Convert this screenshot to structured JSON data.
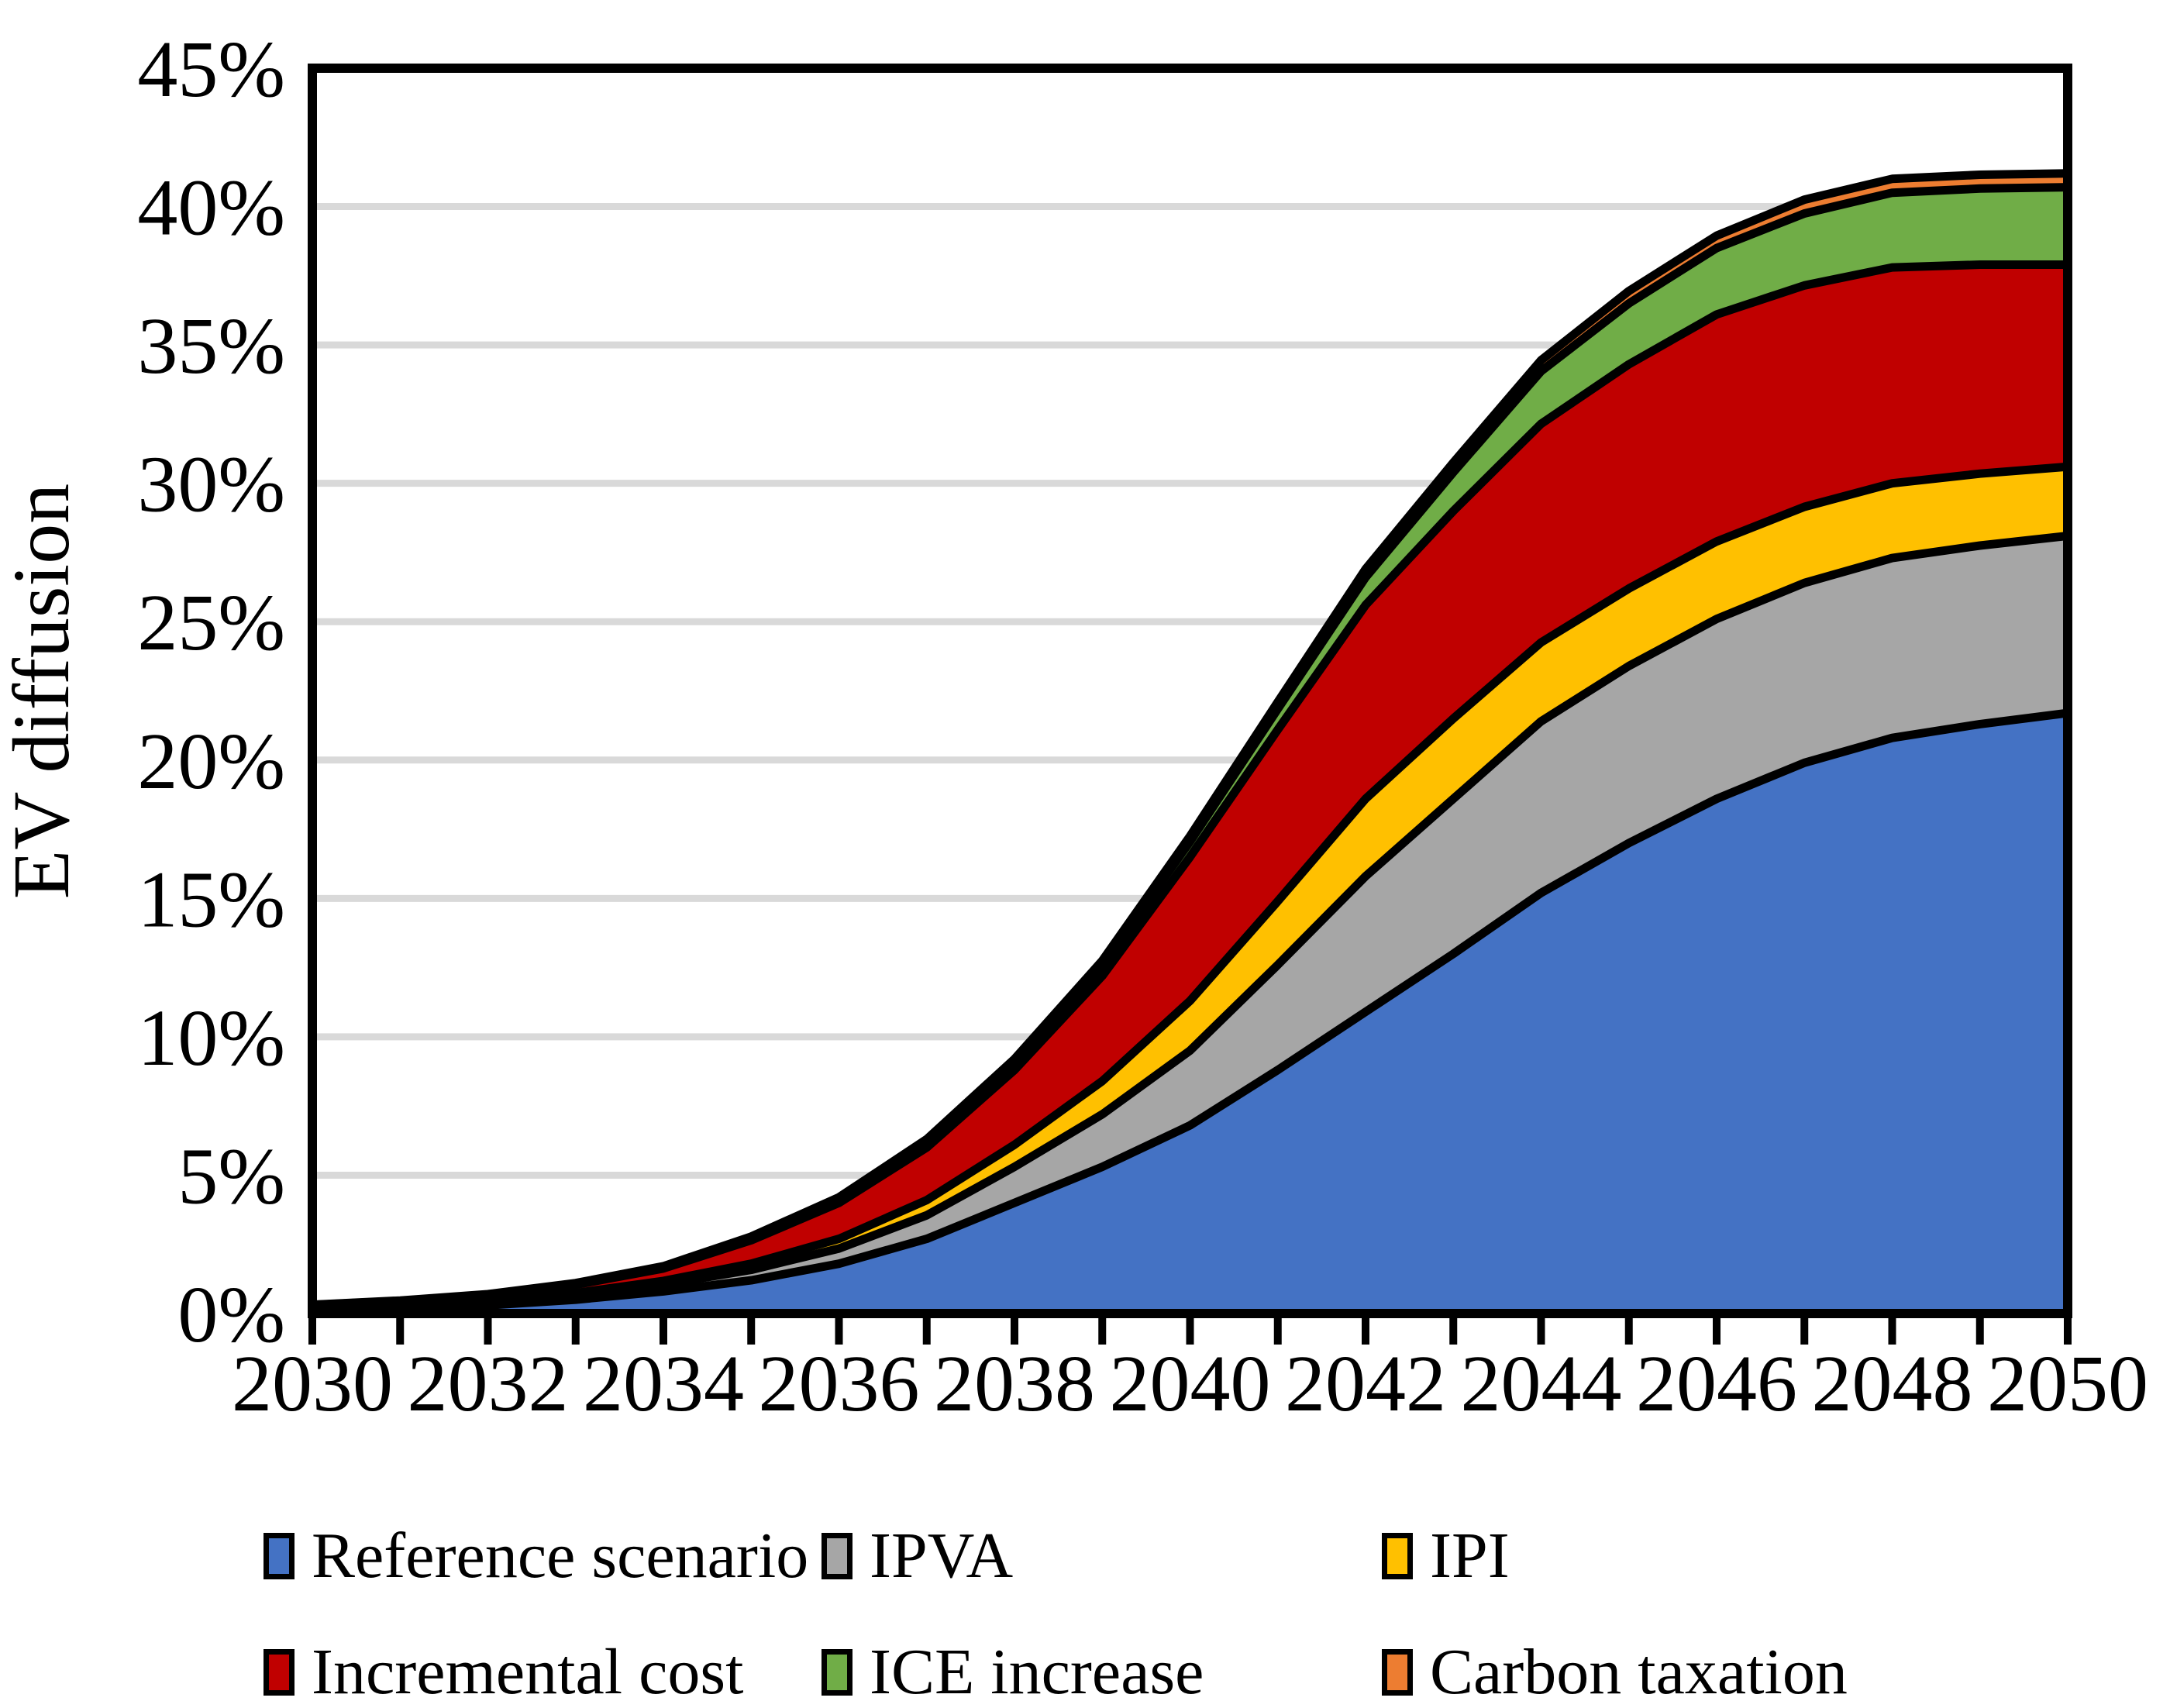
{
  "chart_data": {
    "type": "area",
    "stacked": true,
    "title": "",
    "xlabel": "",
    "ylabel": "EV diffusion",
    "ylim": [
      0,
      45
    ],
    "grid": "horizontal",
    "gridline_color": "#D9D9D9",
    "frame_color": "#000000",
    "boundary_line_color": "#000000",
    "background_color": "#FFFFFF",
    "legend_position": "bottom",
    "x": [
      2030,
      2031,
      2032,
      2033,
      2034,
      2035,
      2036,
      2037,
      2038,
      2039,
      2040,
      2041,
      2042,
      2043,
      2044,
      2045,
      2046,
      2047,
      2048,
      2049,
      2050
    ],
    "x_tick_labels": [
      "2030",
      "2032",
      "2034",
      "2036",
      "2038",
      "2040",
      "2042",
      "2044",
      "2046",
      "2048",
      "2050"
    ],
    "x_label_step": 2,
    "y_ticks": [
      {
        "label": "0%",
        "v": 0
      },
      {
        "label": "5%",
        "v": 5
      },
      {
        "label": "10%",
        "v": 10
      },
      {
        "label": "15%",
        "v": 15
      },
      {
        "label": "20%",
        "v": 20
      },
      {
        "label": "25%",
        "v": 25
      },
      {
        "label": "30%",
        "v": 30
      },
      {
        "label": "35%",
        "v": 35
      },
      {
        "label": "40%",
        "v": 40
      },
      {
        "label": "45%",
        "v": 45
      }
    ],
    "series": [
      {
        "name": "Reference scenario",
        "color": "#4472C4",
        "values": [
          0.15,
          0.2,
          0.3,
          0.5,
          0.8,
          1.2,
          1.8,
          2.7,
          4.0,
          5.3,
          6.8,
          8.8,
          10.9,
          13.0,
          15.2,
          17.0,
          18.6,
          19.9,
          20.8,
          21.3,
          21.7
        ]
      },
      {
        "name": "IPVA",
        "color": "#A6A6A6",
        "values": [
          0.05,
          0.07,
          0.1,
          0.15,
          0.25,
          0.38,
          0.55,
          0.85,
          1.3,
          1.9,
          2.7,
          3.8,
          4.9,
          5.6,
          6.2,
          6.4,
          6.5,
          6.5,
          6.5,
          6.45,
          6.4
        ]
      },
      {
        "name": "IPI",
        "color": "#FFC000",
        "values": [
          0.02,
          0.04,
          0.06,
          0.09,
          0.13,
          0.22,
          0.35,
          0.55,
          0.8,
          1.2,
          1.8,
          2.3,
          2.8,
          2.9,
          2.85,
          2.8,
          2.8,
          2.75,
          2.7,
          2.6,
          2.5
        ]
      },
      {
        "name": "Incremental cost",
        "color": "#C00000",
        "values": [
          0.08,
          0.13,
          0.2,
          0.3,
          0.45,
          0.85,
          1.3,
          1.9,
          2.7,
          3.8,
          5.2,
          6.2,
          7.0,
          7.5,
          7.9,
          8.1,
          8.2,
          8.0,
          7.8,
          7.55,
          7.3
        ]
      },
      {
        "name": "ICE increase",
        "color": "#70AD47",
        "values": [
          0.01,
          0.02,
          0.03,
          0.04,
          0.06,
          0.1,
          0.15,
          0.22,
          0.3,
          0.4,
          0.55,
          0.75,
          1.0,
          1.4,
          1.9,
          2.2,
          2.4,
          2.6,
          2.7,
          2.75,
          2.8
        ]
      },
      {
        "name": "Carbon taxation",
        "color": "#ED7D31",
        "values": [
          0.01,
          0.01,
          0.01,
          0.02,
          0.02,
          0.03,
          0.05,
          0.08,
          0.1,
          0.15,
          0.2,
          0.25,
          0.3,
          0.35,
          0.4,
          0.45,
          0.45,
          0.5,
          0.5,
          0.5,
          0.5
        ]
      }
    ]
  }
}
